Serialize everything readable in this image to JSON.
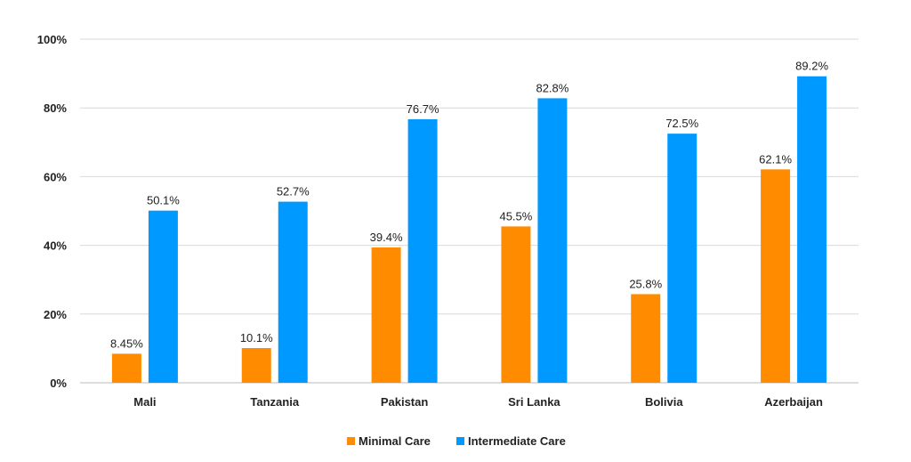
{
  "chart_data": {
    "type": "bar",
    "title": "",
    "xlabel": "",
    "ylabel": "",
    "ylim": [
      0,
      100
    ],
    "yticks": [
      "0%",
      "20%",
      "40%",
      "60%",
      "80%",
      "100%"
    ],
    "grid": true,
    "legend_position": "bottom-center",
    "categories": [
      "Mali",
      "Tanzania",
      "Pakistan",
      "Sri Lanka",
      "Bolivia",
      "Azerbaijan"
    ],
    "series": [
      {
        "name": "Minimal Care",
        "color": "#FF8C00",
        "values": [
          8.45,
          10.1,
          39.4,
          45.5,
          25.8,
          62.1
        ],
        "labels": [
          "8.45%",
          "10.1%",
          "39.4%",
          "45.5%",
          "25.8%",
          "62.1%"
        ]
      },
      {
        "name": "Intermediate Care",
        "color": "#0099FF",
        "values": [
          50.1,
          52.7,
          76.7,
          82.8,
          72.5,
          89.2
        ],
        "labels": [
          "50.1%",
          "52.7%",
          "76.7%",
          "82.8%",
          "72.5%",
          "89.2%"
        ]
      }
    ]
  }
}
